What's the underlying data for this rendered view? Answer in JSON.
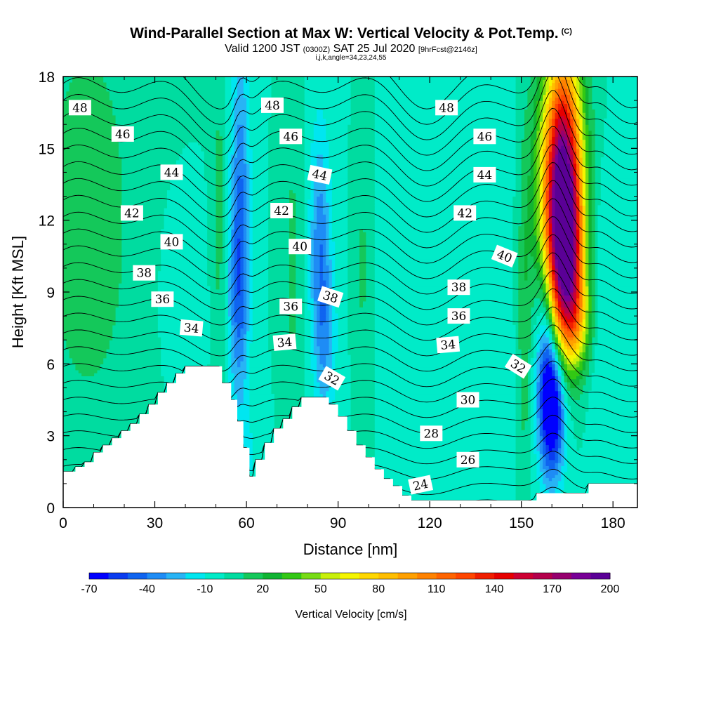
{
  "header": {
    "title": "Wind-Parallel Section at Max W: Vertical Velocity & Pot.Temp.",
    "title_mark": "(C)",
    "valid_prefix": "Valid 1200 JST",
    "valid_utc": "(0300Z)",
    "valid_date": "SAT 25 Jul 2020",
    "forecast_note": "[9hrFcst@2146z]",
    "indices_note": "i,j,k,angle=34,23,24,55"
  },
  "chart_data": {
    "type": "contour-section",
    "xlabel": "Distance [nm]",
    "ylabel": "Height [Kft MSL]",
    "xlim": [
      0,
      188
    ],
    "ylim": [
      0,
      18
    ],
    "x_ticks": [
      0,
      30,
      60,
      90,
      120,
      150,
      180
    ],
    "y_ticks": [
      0,
      3,
      6,
      9,
      12,
      15,
      18
    ],
    "colorbar": {
      "title": "Vertical Velocity [cm/s]",
      "labels": [
        "-70",
        "-40",
        "-10",
        "20",
        "50",
        "80",
        "110",
        "140",
        "170",
        "200"
      ],
      "levels": [
        -70,
        -60,
        -50,
        -40,
        -30,
        -20,
        -10,
        0,
        10,
        20,
        30,
        40,
        50,
        60,
        70,
        80,
        90,
        100,
        110,
        120,
        130,
        140,
        150,
        160,
        170,
        180,
        190,
        200
      ],
      "colors": [
        "#0000ff",
        "#0a3cf0",
        "#0f64f0",
        "#1e8cf5",
        "#28b4f5",
        "#00e6f0",
        "#00ebc8",
        "#00dca0",
        "#14c85a",
        "#10b432",
        "#32c814",
        "#78dc14",
        "#c8f00a",
        "#f5f500",
        "#ffd700",
        "#ffbe00",
        "#ffa000",
        "#ff8200",
        "#ff6400",
        "#ff4600",
        "#f01e00",
        "#e60000",
        "#cd0032",
        "#b4004b",
        "#96006e",
        "#780096",
        "#5a0096"
      ]
    },
    "terrain_kft": [
      [
        0,
        1.5
      ],
      [
        4,
        1.5
      ],
      [
        4,
        1.7
      ],
      [
        7,
        1.7
      ],
      [
        7,
        1.9
      ],
      [
        10,
        1.9
      ],
      [
        10,
        2.3
      ],
      [
        13,
        2.3
      ],
      [
        13,
        2.6
      ],
      [
        16,
        2.6
      ],
      [
        16,
        2.9
      ],
      [
        19,
        2.9
      ],
      [
        19,
        3.2
      ],
      [
        22,
        3.2
      ],
      [
        22,
        3.5
      ],
      [
        25,
        3.5
      ],
      [
        25,
        3.9
      ],
      [
        28,
        3.9
      ],
      [
        28,
        4.3
      ],
      [
        31,
        4.3
      ],
      [
        31,
        4.8
      ],
      [
        34,
        4.8
      ],
      [
        34,
        5.2
      ],
      [
        37,
        5.2
      ],
      [
        37,
        5.6
      ],
      [
        40,
        5.6
      ],
      [
        40,
        5.9
      ],
      [
        52,
        5.9
      ],
      [
        52,
        5.2
      ],
      [
        55,
        5.2
      ],
      [
        55,
        4.5
      ],
      [
        57,
        4.5
      ],
      [
        57,
        3.6
      ],
      [
        59,
        3.6
      ],
      [
        59,
        2.5
      ],
      [
        61,
        2.5
      ],
      [
        61,
        1.3
      ],
      [
        63,
        1.3
      ],
      [
        63,
        2.0
      ],
      [
        66,
        2.0
      ],
      [
        66,
        2.7
      ],
      [
        69,
        2.7
      ],
      [
        69,
        3.3
      ],
      [
        72,
        3.3
      ],
      [
        72,
        3.7
      ],
      [
        75,
        3.7
      ],
      [
        75,
        4.2
      ],
      [
        78,
        4.2
      ],
      [
        78,
        4.6
      ],
      [
        87,
        4.6
      ],
      [
        87,
        4.3
      ],
      [
        90,
        4.3
      ],
      [
        90,
        3.8
      ],
      [
        93,
        3.8
      ],
      [
        93,
        3.2
      ],
      [
        96,
        3.2
      ],
      [
        96,
        2.6
      ],
      [
        99,
        2.6
      ],
      [
        99,
        2.1
      ],
      [
        102,
        2.1
      ],
      [
        102,
        1.6
      ],
      [
        105,
        1.6
      ],
      [
        105,
        1.2
      ],
      [
        108,
        1.2
      ],
      [
        108,
        0.9
      ],
      [
        111,
        0.9
      ],
      [
        111,
        0.5
      ],
      [
        114,
        0.5
      ],
      [
        114,
        0.3
      ],
      [
        155,
        0.3
      ],
      [
        155,
        0.6
      ],
      [
        172,
        0.6
      ],
      [
        172,
        1.0
      ],
      [
        188,
        1.0
      ]
    ],
    "w_features": [
      {
        "x": 163,
        "y": 13.5,
        "sx": 4.6,
        "sy": 3.8,
        "w": 205
      },
      {
        "x": 165,
        "y": 10.2,
        "sx": 3.8,
        "sy": 2.4,
        "w": 95
      },
      {
        "x": 168,
        "y": 7.8,
        "sx": 3.6,
        "sy": 1.4,
        "w": 45
      },
      {
        "x": 160,
        "y": 4.3,
        "sx": 2.9,
        "sy": 2.1,
        "w": -90
      },
      {
        "x": 158,
        "y": 7.5,
        "sx": 2.2,
        "sy": 2.5,
        "w": -30
      },
      {
        "x": 159.5,
        "y": 15.5,
        "sx": 2.5,
        "sy": 3.5,
        "w": -18
      },
      {
        "x": 176,
        "y": 8.5,
        "sx": 4,
        "sy": 3.5,
        "w": -12
      },
      {
        "x": 58,
        "y": 12.5,
        "sx": 2.2,
        "sy": 5,
        "w": -38
      },
      {
        "x": 57,
        "y": 8.5,
        "sx": 2.6,
        "sy": 3,
        "w": -22
      },
      {
        "x": 84,
        "y": 11,
        "sx": 2.4,
        "sy": 3.5,
        "w": -35
      },
      {
        "x": 86,
        "y": 7,
        "sx": 2.5,
        "sy": 2.5,
        "w": -22
      },
      {
        "x": 51,
        "y": 12,
        "sx": 1.6,
        "sy": 5,
        "w": 14
      },
      {
        "x": 75,
        "y": 10,
        "sx": 2.5,
        "sy": 6,
        "w": 12
      },
      {
        "x": 98,
        "y": 10,
        "sx": 2.2,
        "sy": 6,
        "w": 12
      },
      {
        "x": 151,
        "y": 8,
        "sx": 1.6,
        "sy": 5.5,
        "w": 18
      },
      {
        "x": 8,
        "y": 12,
        "sx": 14,
        "sy": 8,
        "w": 14
      },
      {
        "x": 38,
        "y": 9,
        "sx": 5,
        "sy": 3,
        "w": -8
      },
      {
        "x": 60,
        "y": 2,
        "sx": 4,
        "sy": 1.5,
        "w": -10
      },
      {
        "x": 126,
        "y": 9,
        "sx": 22,
        "sy": 14,
        "w": -3
      }
    ],
    "pot_temp": {
      "unit_hint": "contours labelled in degrees",
      "levels": [
        23,
        24,
        25,
        26,
        27,
        28,
        29,
        30,
        31,
        32,
        33,
        34,
        35,
        36,
        37,
        38,
        39,
        40,
        41,
        42,
        43,
        44,
        45,
        46,
        47,
        48,
        49
      ],
      "labels": [
        {
          "text": "48",
          "x": 5.5,
          "y": 16.7,
          "rot": 0
        },
        {
          "text": "46",
          "x": 19.5,
          "y": 15.6,
          "rot": 0
        },
        {
          "text": "44",
          "x": 35.5,
          "y": 14.0,
          "rot": 0
        },
        {
          "text": "42",
          "x": 22.5,
          "y": 12.3,
          "rot": 0
        },
        {
          "text": "40",
          "x": 35.5,
          "y": 11.1,
          "rot": 0
        },
        {
          "text": "38",
          "x": 26.5,
          "y": 9.8,
          "rot": 0
        },
        {
          "text": "36",
          "x": 32.5,
          "y": 8.7,
          "rot": 0
        },
        {
          "text": "34",
          "x": 42,
          "y": 7.5,
          "rot": 5
        },
        {
          "text": "48",
          "x": 68.5,
          "y": 16.8,
          "rot": 0
        },
        {
          "text": "46",
          "x": 74.5,
          "y": 15.5,
          "rot": 0
        },
        {
          "text": "44",
          "x": 84,
          "y": 13.9,
          "rot": 12
        },
        {
          "text": "42",
          "x": 71.5,
          "y": 12.4,
          "rot": 0
        },
        {
          "text": "40",
          "x": 77.5,
          "y": 10.9,
          "rot": 0
        },
        {
          "text": "38",
          "x": 87.5,
          "y": 8.8,
          "rot": 18
        },
        {
          "text": "36",
          "x": 74.5,
          "y": 8.4,
          "rot": 0
        },
        {
          "text": "34",
          "x": 72.5,
          "y": 6.9,
          "rot": -5
        },
        {
          "text": "32",
          "x": 88,
          "y": 5.4,
          "rot": 30
        },
        {
          "text": "48",
          "x": 125.5,
          "y": 16.7,
          "rot": 0
        },
        {
          "text": "46",
          "x": 138,
          "y": 15.5,
          "rot": 0
        },
        {
          "text": "44",
          "x": 138,
          "y": 13.9,
          "rot": 0
        },
        {
          "text": "42",
          "x": 131.5,
          "y": 12.3,
          "rot": 0
        },
        {
          "text": "40",
          "x": 144.5,
          "y": 10.5,
          "rot": 22
        },
        {
          "text": "38",
          "x": 129.5,
          "y": 9.2,
          "rot": 0
        },
        {
          "text": "36",
          "x": 129.5,
          "y": 8.0,
          "rot": 0
        },
        {
          "text": "34",
          "x": 126,
          "y": 6.8,
          "rot": -5
        },
        {
          "text": "32",
          "x": 149,
          "y": 5.9,
          "rot": 32
        },
        {
          "text": "30",
          "x": 132.5,
          "y": 4.5,
          "rot": 0
        },
        {
          "text": "28",
          "x": 120.5,
          "y": 3.1,
          "rot": 0
        },
        {
          "text": "26",
          "x": 132.5,
          "y": 2.0,
          "rot": 0
        },
        {
          "text": "24",
          "x": 117,
          "y": 0.95,
          "rot": -12
        }
      ]
    }
  }
}
